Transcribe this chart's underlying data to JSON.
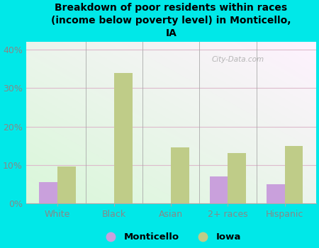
{
  "categories": [
    "White",
    "Black",
    "Asian",
    "2+ races",
    "Hispanic"
  ],
  "monticello_values": [
    5.5,
    0,
    0,
    7.0,
    5.0
  ],
  "iowa_values": [
    9.5,
    34.0,
    14.5,
    13.0,
    15.0
  ],
  "monticello_color": "#c9a0dc",
  "iowa_color": "#bfcc88",
  "title": "Breakdown of poor residents within races\n(income below poverty level) in Monticello,\nIA",
  "ylim": [
    0,
    42
  ],
  "yticks": [
    0,
    10,
    20,
    30,
    40
  ],
  "ytick_labels": [
    "0%",
    "10%",
    "20%",
    "30%",
    "40%"
  ],
  "background_color": "#00e8e8",
  "watermark": "City-Data.com",
  "bar_width": 0.32,
  "legend_monticello": "Monticello",
  "legend_iowa": "Iowa",
  "grid_color": "#ddbbcc",
  "tick_color": "#888888"
}
